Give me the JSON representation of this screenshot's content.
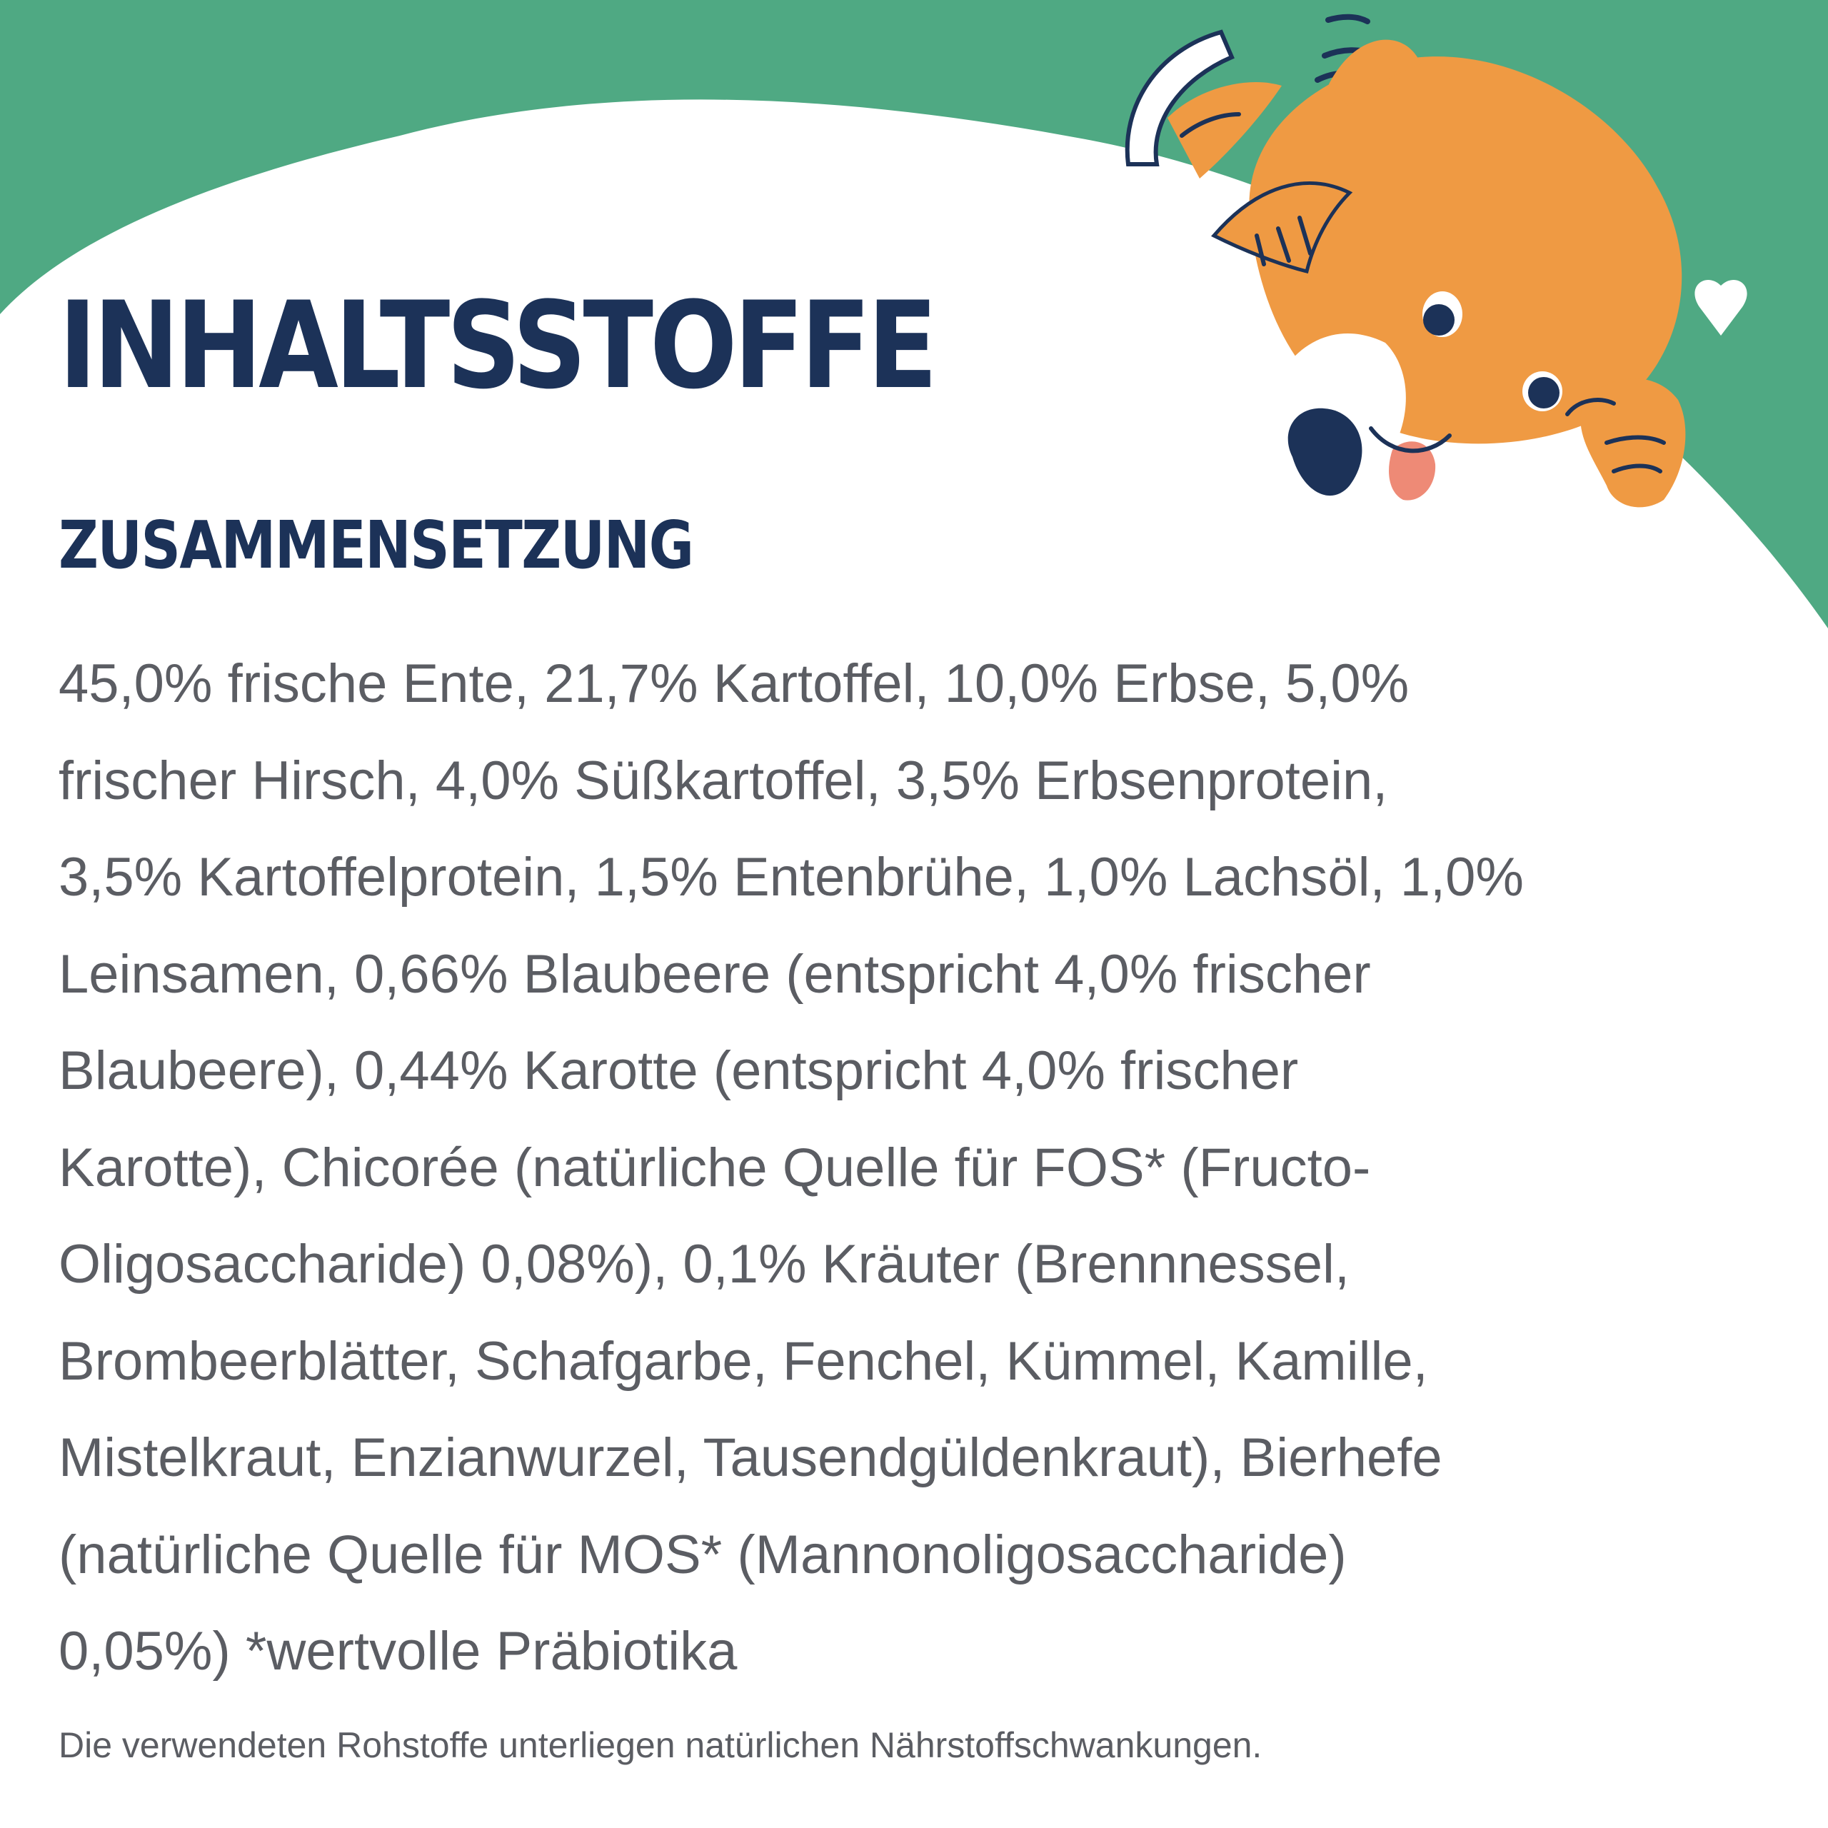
{
  "colors": {
    "green_background": "#4fa983",
    "title_navy": "#1c3258",
    "body_gray": "#5b5d63",
    "dog_orange": "#ef9a43"
  },
  "illustration": {
    "name": "peeking-dog-illustration"
  },
  "heading": {
    "title": "INHALTSSTOFFE",
    "subtitle": "ZUSAMMENSETZUNG"
  },
  "composition": {
    "lines": [
      "45,0% frische Ente, 21,7% Kartoffel, 10,0% Erbse, 5,0%",
      "frischer Hirsch, 4,0% Süßkartoffel, 3,5% Erbsenprotein,",
      "3,5% Kartoffelprotein, 1,5% Entenbrühe, 1,0% Lachsöl, 1,0%",
      "Leinsamen, 0,66% Blaubeere (entspricht 4,0% frischer",
      "Blaubeere), 0,44% Karotte (entspricht 4,0% frischer",
      "Karotte), Chicorée (natürliche Quelle für FOS* (Fructo-",
      "Oligosaccharide) 0,08%), 0,1% Kräuter (Brennnessel,",
      "Brombeerblätter, Schafgarbe, Fenchel, Kümmel, Kamille,",
      "Mistelkraut, Enzianwurzel, Tausendgüldenkraut), Bierhefe",
      "(natürliche Quelle für MOS* (Mannonoligosaccharide)",
      "0,05%) *wertvolle Präbiotika"
    ]
  },
  "footer": {
    "note": "Die verwendeten Rohstoffe unterliegen natürlichen Nährstoffschwankungen."
  }
}
